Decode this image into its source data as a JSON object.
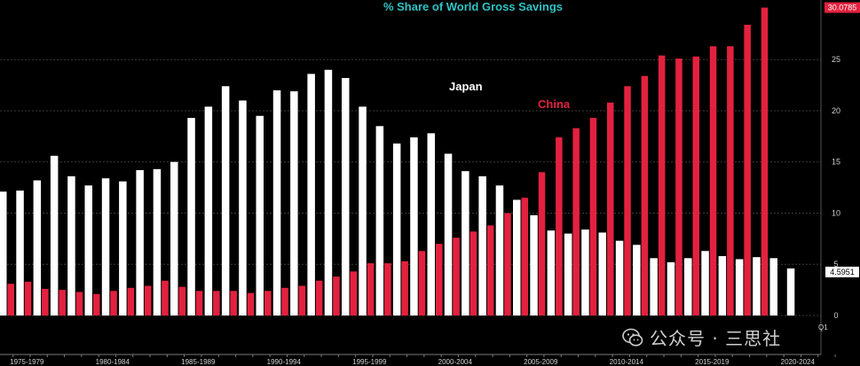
{
  "chart_data": {
    "type": "bar",
    "title": "% Share of World Gross Savings",
    "xlabel": "",
    "ylabel": "",
    "ylim": [
      0,
      30.3
    ],
    "y_ticks": [
      0,
      5,
      10,
      15,
      20,
      25
    ],
    "x_tick_labels": [
      "1975-1979",
      "1980-1984",
      "1985-1989",
      "1990-1994",
      "1995-1999",
      "2000-2004",
      "2005-2009",
      "2010-2014",
      "2015-2019",
      "2020-2024"
    ],
    "x_tick_label_periods": [
      1,
      6,
      11,
      16,
      21,
      26,
      31,
      36,
      41,
      46
    ],
    "series": [
      {
        "name": "Japan",
        "color": "#ffffff",
        "values": [
          12.1,
          12.2,
          13.2,
          15.6,
          13.6,
          12.7,
          13.4,
          13.1,
          14.2,
          14.3,
          15.0,
          19.3,
          20.4,
          22.4,
          21.0,
          19.5,
          22.0,
          21.9,
          23.6,
          24.0,
          23.2,
          20.4,
          18.5,
          16.8,
          17.4,
          17.8,
          15.8,
          14.1,
          13.6,
          12.7,
          11.3,
          9.8,
          8.3,
          8.0,
          8.4,
          8.1,
          7.3,
          6.9,
          5.6,
          5.2,
          5.6,
          6.3,
          5.8,
          5.5,
          5.7,
          5.6,
          4.5951
        ],
        "last_value_label": "4.5951"
      },
      {
        "name": "China",
        "color": "#e3213f",
        "values": [
          3.1,
          3.3,
          2.6,
          2.5,
          2.3,
          2.1,
          2.4,
          2.7,
          2.9,
          3.4,
          2.8,
          2.4,
          2.4,
          2.4,
          2.2,
          2.4,
          2.7,
          2.9,
          3.4,
          3.8,
          4.3,
          5.1,
          5.1,
          5.3,
          6.3,
          7.0,
          7.6,
          8.2,
          8.8,
          10.0,
          11.5,
          14.0,
          17.4,
          18.3,
          19.3,
          20.8,
          22.4,
          23.4,
          25.4,
          25.1,
          25.3,
          26.3,
          26.3,
          28.4,
          30.0785
        ],
        "last_value_label": "30.0785"
      }
    ],
    "annotations": [
      "Japan",
      "China"
    ],
    "corner_mark": "Q1"
  },
  "watermark": "公众号 · 三思社",
  "colors": {
    "background": "#000000",
    "title": "#2ec4c7",
    "japan": "#ffffff",
    "china": "#e3213f",
    "grid": "#3a3a3a",
    "axis_text": "#cfcfcf"
  }
}
